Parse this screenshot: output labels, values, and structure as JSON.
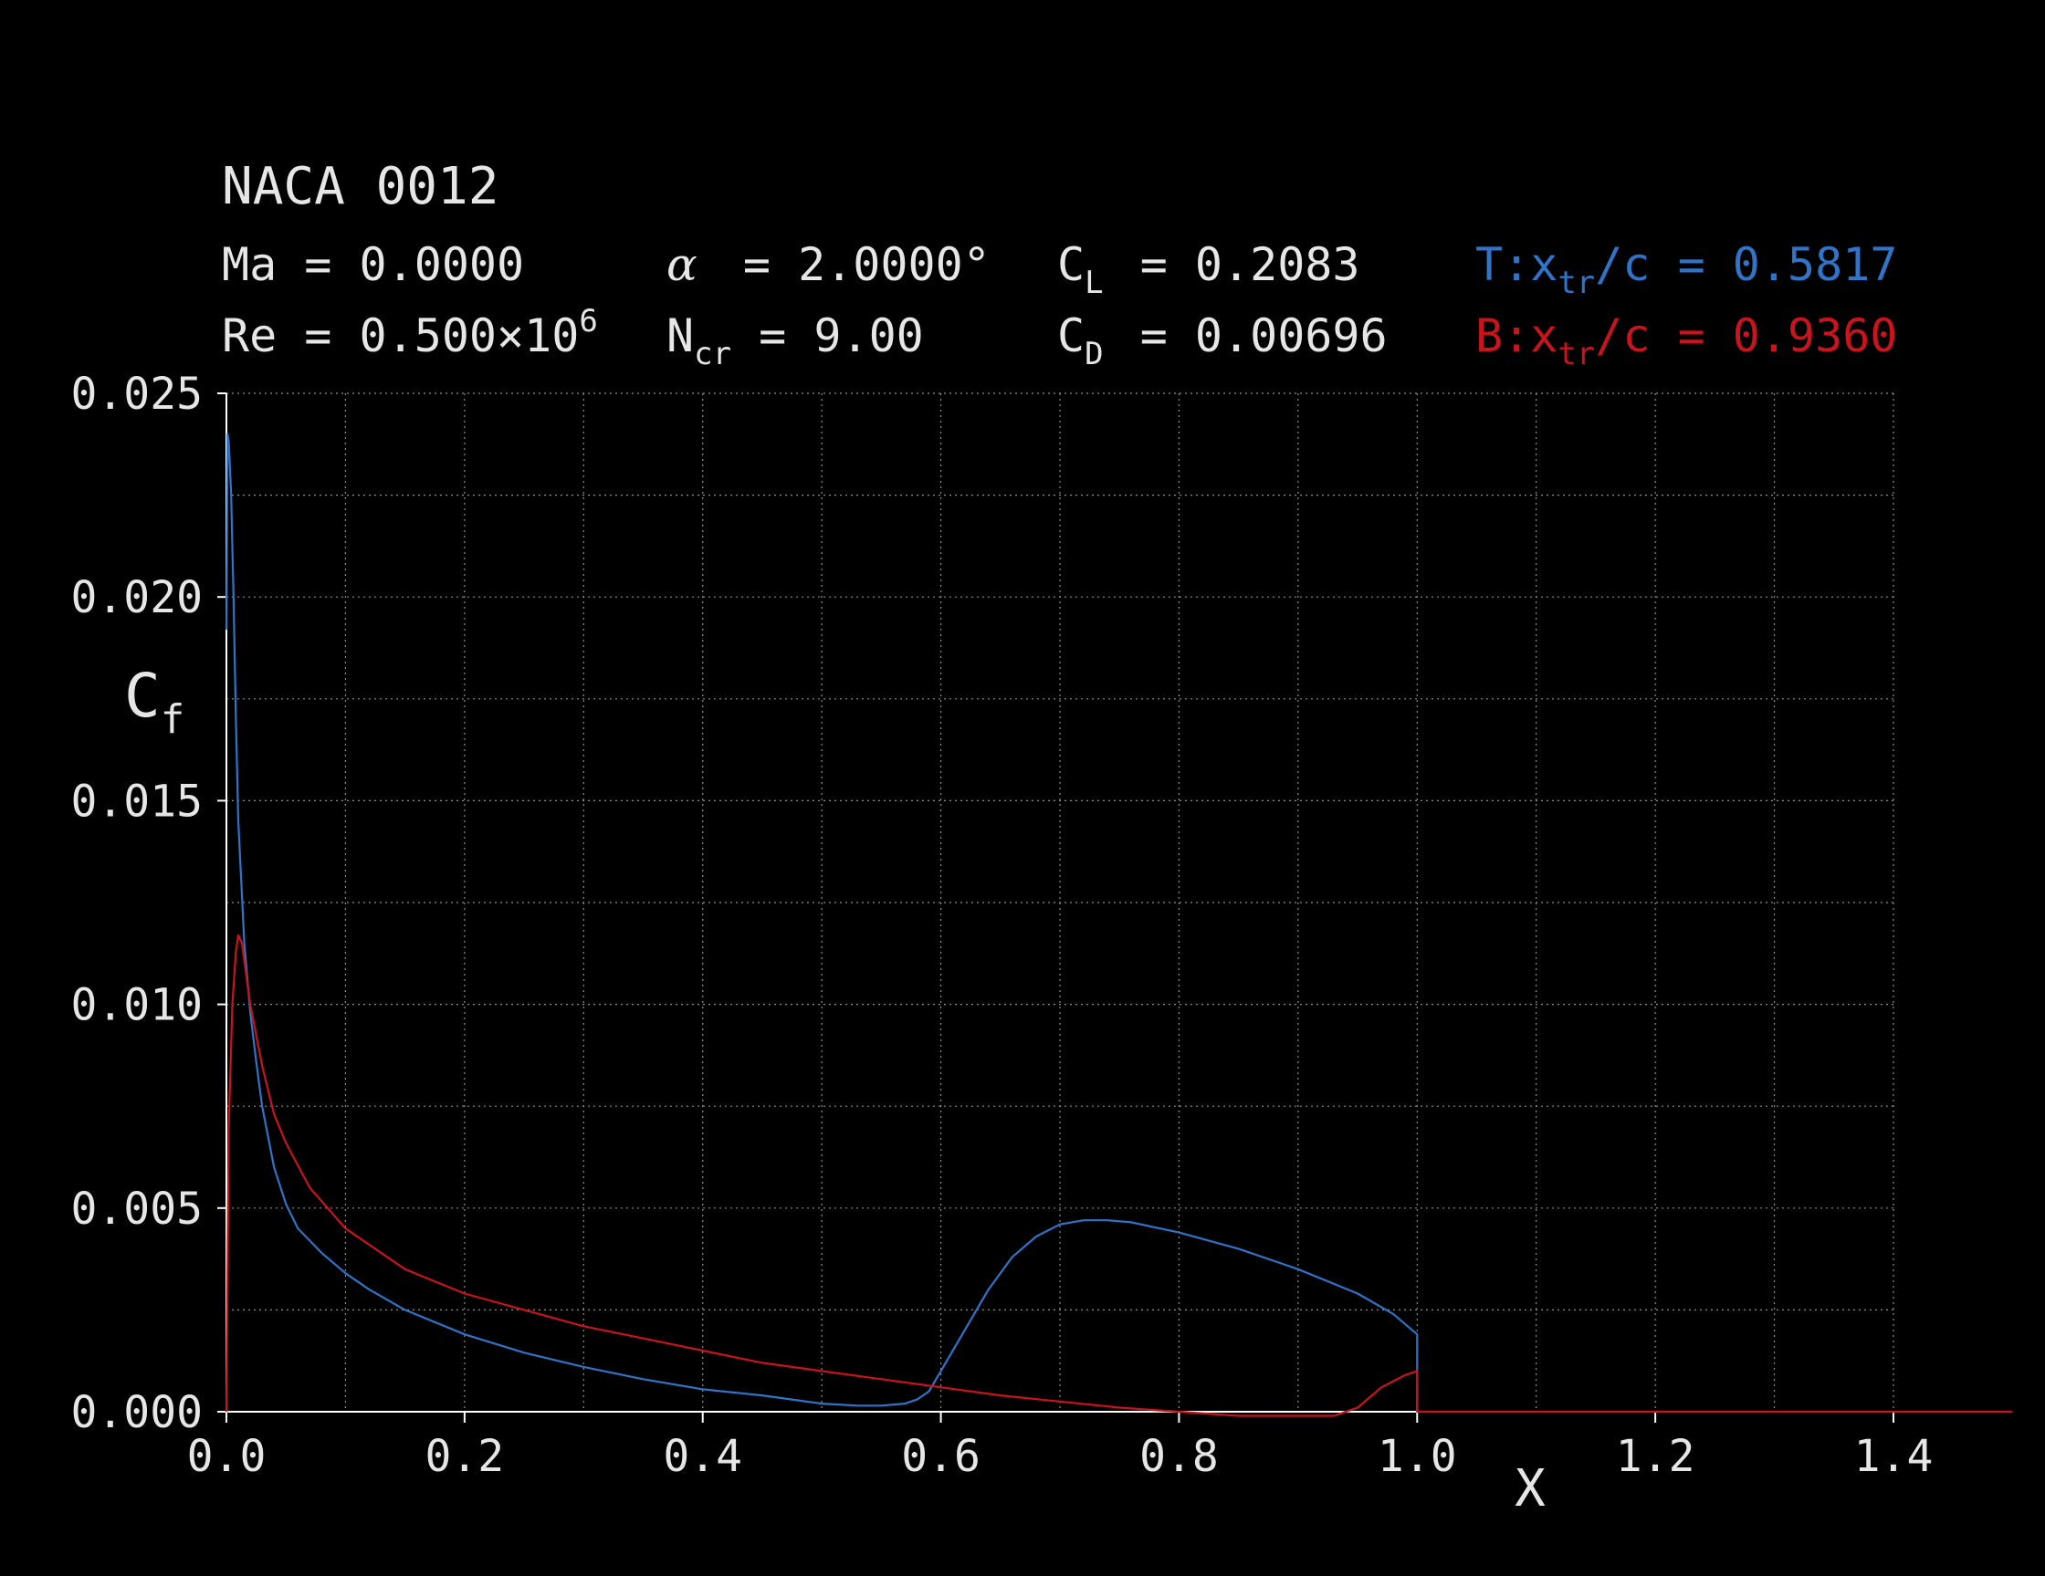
{
  "header": {
    "title": "NACA 0012",
    "row1": [
      {
        "key": "Ma = 0.0000"
      },
      {
        "key": "alpha",
        "symbol": "α",
        "rest": " = 2.0000°"
      },
      {
        "key": "CL",
        "main": "C",
        "sub": "L",
        "rest": " = 0.2083"
      },
      {
        "key": "top_tr",
        "pre": "T:x",
        "sub": "tr",
        "rest": "/c = 0.5817"
      }
    ],
    "row2": [
      {
        "key": "Re",
        "main": "Re = 0.500×10",
        "sup": "6"
      },
      {
        "key": "Ncr",
        "main": "N",
        "sub": "cr",
        "rest": " = 9.00"
      },
      {
        "key": "CD",
        "main": "C",
        "sub": "D",
        "rest": " = 0.00696"
      },
      {
        "key": "bot_tr",
        "pre": "B:x",
        "sub": "tr",
        "rest": "/c = 0.9360"
      }
    ]
  },
  "colors": {
    "background": "#000000",
    "text": "#e6e6e6",
    "grid": "#8c8c8c",
    "axis": "#ffffff",
    "top_surface": "#2f74c8",
    "bottom_surface": "#c8141c"
  },
  "chart_data": {
    "type": "line",
    "title": "NACA 0012",
    "xlabel": "X",
    "ylabel": "Cf",
    "xlim": [
      0.0,
      1.4
    ],
    "ylim": [
      0.0,
      0.025
    ],
    "x_ticks": [
      "0.0",
      "0.2",
      "0.4",
      "0.6",
      "0.8",
      "1.0",
      "1.2",
      "1.4"
    ],
    "y_ticks": [
      "0.000",
      "0.005",
      "0.010",
      "0.015",
      "0.020",
      "0.025"
    ],
    "grid": true,
    "series": [
      {
        "name": "T",
        "color": "#2f74c8",
        "points": [
          [
            0.0,
            0.0192
          ],
          [
            0.001,
            0.024
          ],
          [
            0.002,
            0.0238
          ],
          [
            0.004,
            0.0225
          ],
          [
            0.006,
            0.02
          ],
          [
            0.008,
            0.017
          ],
          [
            0.01,
            0.0145
          ],
          [
            0.015,
            0.0115
          ],
          [
            0.02,
            0.0098
          ],
          [
            0.025,
            0.0086
          ],
          [
            0.03,
            0.0075
          ],
          [
            0.04,
            0.006
          ],
          [
            0.05,
            0.0051
          ],
          [
            0.06,
            0.0045
          ],
          [
            0.08,
            0.0039
          ],
          [
            0.1,
            0.0034
          ],
          [
            0.12,
            0.003
          ],
          [
            0.15,
            0.0025
          ],
          [
            0.2,
            0.0019
          ],
          [
            0.25,
            0.00145
          ],
          [
            0.3,
            0.0011
          ],
          [
            0.35,
            0.0008
          ],
          [
            0.4,
            0.00055
          ],
          [
            0.45,
            0.0004
          ],
          [
            0.5,
            0.0002
          ],
          [
            0.53,
            0.00015
          ],
          [
            0.55,
            0.00015
          ],
          [
            0.57,
            0.0002
          ],
          [
            0.58,
            0.0003
          ],
          [
            0.59,
            0.0005
          ],
          [
            0.6,
            0.001
          ],
          [
            0.62,
            0.002
          ],
          [
            0.64,
            0.003
          ],
          [
            0.66,
            0.0038
          ],
          [
            0.68,
            0.0043
          ],
          [
            0.7,
            0.0046
          ],
          [
            0.72,
            0.0047
          ],
          [
            0.74,
            0.0047
          ],
          [
            0.76,
            0.00465
          ],
          [
            0.8,
            0.0044
          ],
          [
            0.85,
            0.004
          ],
          [
            0.9,
            0.0035
          ],
          [
            0.95,
            0.0029
          ],
          [
            0.98,
            0.0024
          ],
          [
            1.0,
            0.0019
          ],
          [
            1.0,
            0.0
          ]
        ]
      },
      {
        "name": "B",
        "color": "#c8141c",
        "points": [
          [
            0.0,
            0.0
          ],
          [
            0.002,
            0.007
          ],
          [
            0.005,
            0.01
          ],
          [
            0.008,
            0.0113
          ],
          [
            0.01,
            0.0117
          ],
          [
            0.013,
            0.0115
          ],
          [
            0.02,
            0.01
          ],
          [
            0.03,
            0.0085
          ],
          [
            0.04,
            0.0073
          ],
          [
            0.05,
            0.0066
          ],
          [
            0.07,
            0.0055
          ],
          [
            0.1,
            0.0045
          ],
          [
            0.15,
            0.0035
          ],
          [
            0.2,
            0.0029
          ],
          [
            0.25,
            0.0025
          ],
          [
            0.3,
            0.0021
          ],
          [
            0.35,
            0.0018
          ],
          [
            0.4,
            0.0015
          ],
          [
            0.45,
            0.0012
          ],
          [
            0.5,
            0.001
          ],
          [
            0.55,
            0.0008
          ],
          [
            0.6,
            0.0006
          ],
          [
            0.65,
            0.0004
          ],
          [
            0.7,
            0.00025
          ],
          [
            0.75,
            0.0001
          ],
          [
            0.8,
            0.0
          ],
          [
            0.85,
            -0.0001
          ],
          [
            0.9,
            -0.0001
          ],
          [
            0.93,
            -0.0001
          ],
          [
            0.95,
            0.0001
          ],
          [
            0.97,
            0.0006
          ],
          [
            0.99,
            0.0009
          ],
          [
            1.0,
            0.001
          ],
          [
            1.0,
            0.0
          ],
          [
            1.5,
            0.0
          ]
        ]
      }
    ]
  }
}
